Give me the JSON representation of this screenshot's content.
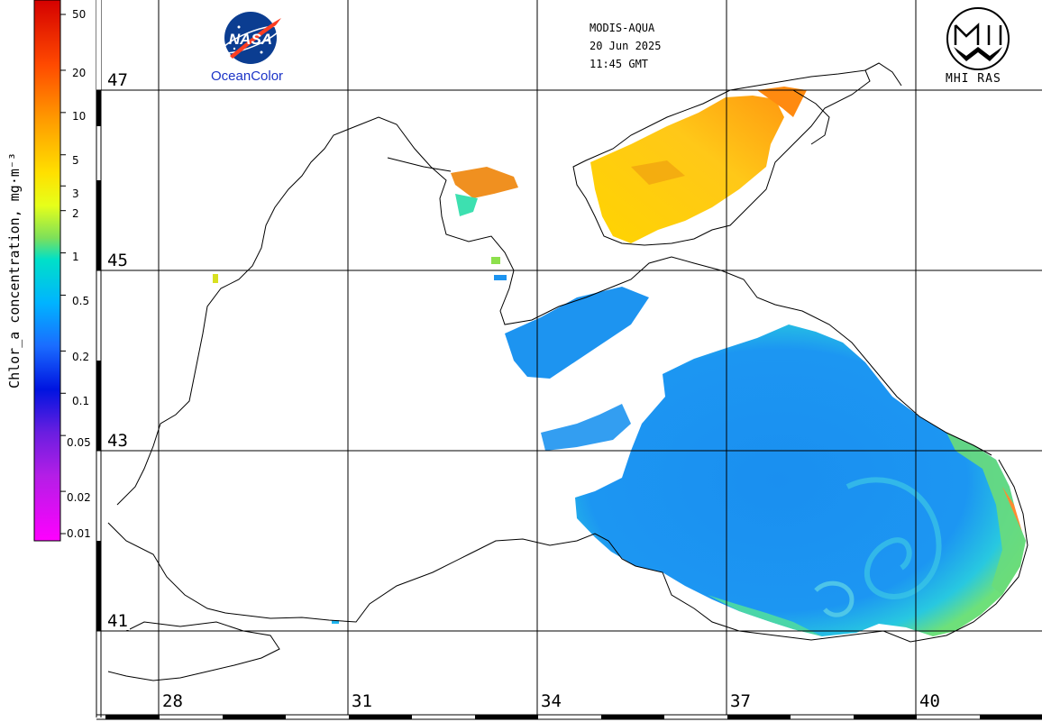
{
  "header": {
    "sensor": "MODIS-AQUA",
    "date": "20 Jun 2025",
    "time": "11:45 GMT"
  },
  "logos": {
    "nasa_wordmark": "NASA",
    "nasa_caption": "OceanColor",
    "mhi_caption": "MHI RAS"
  },
  "colorbar": {
    "title": "Chlor_a concentration, mg·m⁻³",
    "ticks": [
      "50",
      "20",
      "10",
      "5",
      "3",
      "2",
      "1",
      "0.5",
      "0.2",
      "0.1",
      "0.05",
      "0.02",
      "0.01"
    ],
    "scale": "log",
    "colors": [
      "#e00000",
      "#ff6a00",
      "#ffc800",
      "#ffff00",
      "#8ce64a",
      "#00e5e5",
      "#1e90ff",
      "#0000dd",
      "#8a2be2",
      "#ff00ff"
    ]
  },
  "map": {
    "region": "Black Sea",
    "latitudes": [
      "47",
      "45",
      "43",
      "41"
    ],
    "longitudes": [
      "28",
      "31",
      "34",
      "37",
      "40"
    ],
    "land_color": "#ffffff",
    "coast_color": "#000000",
    "grid_color": "#000000"
  }
}
